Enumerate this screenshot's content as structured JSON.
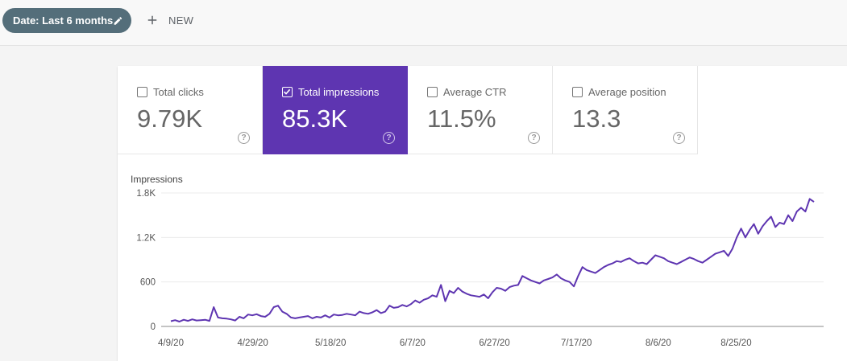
{
  "toolbar": {
    "date_filter_label": "Date: Last 6 months",
    "date_filter_icon": "pencil-icon",
    "new_label": "NEW",
    "new_icon": "plus-icon"
  },
  "metrics": [
    {
      "label": "Total clicks",
      "value": "9.79K",
      "checked": false,
      "help": "?"
    },
    {
      "label": "Total impressions",
      "value": "85.3K",
      "checked": true,
      "help": "?"
    },
    {
      "label": "Average CTR",
      "value": "11.5%",
      "checked": false,
      "help": "?"
    },
    {
      "label": "Average position",
      "value": "13.3",
      "checked": false,
      "help": "?"
    }
  ],
  "colors": {
    "accent": "#5e35b1",
    "line": "#5e35b1",
    "chip": "#546e7a"
  },
  "chart_data": {
    "type": "line",
    "ylabel": "Impressions",
    "ylim": [
      0,
      1800
    ],
    "yticks": [
      0,
      600,
      1200,
      1800
    ],
    "ytick_labels": [
      "0",
      "600",
      "1.2K",
      "1.8K"
    ],
    "xtick_labels": [
      "4/9/20",
      "4/29/20",
      "5/18/20",
      "6/7/20",
      "6/27/20",
      "7/17/20",
      "8/6/20",
      "8/25/20"
    ],
    "xtick_days": [
      0,
      20,
      39,
      59,
      79,
      99,
      119,
      138
    ],
    "x_days_total": 157,
    "grid": true,
    "series": [
      {
        "values": [
          70,
          85,
          65,
          90,
          75,
          95,
          80,
          85,
          90,
          75,
          260,
          120,
          110,
          105,
          95,
          80,
          130,
          110,
          160,
          150,
          165,
          140,
          130,
          170,
          260,
          280,
          200,
          170,
          120,
          110,
          120,
          130,
          140,
          110,
          130,
          120,
          150,
          120,
          160,
          150,
          155,
          170,
          160,
          150,
          200,
          180,
          170,
          190,
          220,
          180,
          200,
          280,
          250,
          260,
          290,
          270,
          300,
          350,
          320,
          360,
          380,
          420,
          400,
          560,
          340,
          480,
          450,
          520,
          470,
          440,
          420,
          410,
          400,
          430,
          380,
          460,
          520,
          510,
          480,
          530,
          550,
          560,
          680,
          650,
          620,
          600,
          580,
          620,
          640,
          660,
          700,
          650,
          620,
          600,
          540,
          680,
          800,
          760,
          740,
          720,
          760,
          800,
          830,
          850,
          880,
          870,
          900,
          920,
          880,
          850,
          860,
          840,
          900,
          960,
          940,
          920,
          880,
          860,
          840,
          870,
          900,
          930,
          910,
          880,
          860,
          900,
          940,
          980,
          1000,
          1020,
          950,
          1050,
          1200,
          1320,
          1200,
          1300,
          1380,
          1250,
          1350,
          1420,
          1480,
          1340,
          1400,
          1380,
          1500,
          1420,
          1550,
          1600,
          1550,
          1720,
          1680
        ]
      }
    ]
  }
}
